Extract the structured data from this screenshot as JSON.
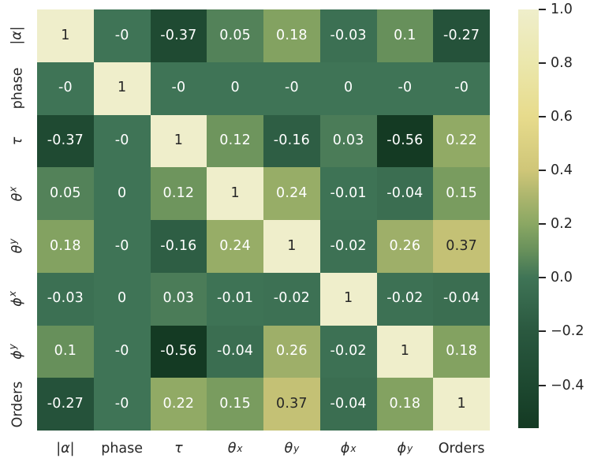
{
  "figure": {
    "background": "#ffffff",
    "text_color": "#262626",
    "annot_light_color": "#ffffff"
  },
  "chart_data": {
    "type": "heatmap",
    "title": "",
    "xlabel": "",
    "ylabel": "",
    "categories": [
      "|α|",
      "phase",
      "τ",
      "θ^x",
      "θ^y",
      "ϕ^x",
      "ϕ^y",
      "Orders"
    ],
    "label_specs": [
      "|*α*|",
      "phase",
      "*τ*",
      "*θ*^x",
      "*θ*^y",
      "*ϕ*^x",
      "*ϕ*^y",
      "Orders"
    ],
    "values": [
      [
        1,
        0,
        -0.37,
        0.05,
        0.18,
        -0.03,
        0.1,
        -0.27
      ],
      [
        0,
        1,
        0,
        0,
        0,
        0,
        0,
        0
      ],
      [
        -0.37,
        0,
        1,
        0.12,
        -0.16,
        0.03,
        -0.56,
        0.22
      ],
      [
        0.05,
        0,
        0.12,
        1,
        0.24,
        -0.01,
        -0.04,
        0.15
      ],
      [
        0.18,
        0,
        -0.16,
        0.24,
        1,
        -0.02,
        0.26,
        0.37
      ],
      [
        -0.03,
        0,
        0.03,
        -0.01,
        -0.02,
        1,
        -0.02,
        -0.04
      ],
      [
        0.1,
        0,
        -0.56,
        -0.04,
        0.26,
        -0.02,
        1,
        0.18
      ],
      [
        -0.27,
        0,
        0.22,
        0.15,
        0.37,
        -0.04,
        0.18,
        1
      ]
    ],
    "annotations": [
      [
        "1",
        "-0",
        "-0.37",
        "0.05",
        "0.18",
        "-0.03",
        "0.1",
        "-0.27"
      ],
      [
        "-0",
        "1",
        "-0",
        "0",
        "-0",
        "0",
        "-0",
        "-0"
      ],
      [
        "-0.37",
        "-0",
        "1",
        "0.12",
        "-0.16",
        "0.03",
        "-0.56",
        "0.22"
      ],
      [
        "0.05",
        "0",
        "0.12",
        "1",
        "0.24",
        "-0.01",
        "-0.04",
        "0.15"
      ],
      [
        "0.18",
        "-0",
        "-0.16",
        "0.24",
        "1",
        "-0.02",
        "0.26",
        "0.37"
      ],
      [
        "-0.03",
        "0",
        "0.03",
        "-0.01",
        "-0.02",
        "1",
        "-0.02",
        "-0.04"
      ],
      [
        "0.1",
        "-0",
        "-0.56",
        "-0.04",
        "0.26",
        "-0.02",
        "1",
        "0.18"
      ],
      [
        "-0.27",
        "-0",
        "0.22",
        "0.15",
        "0.37",
        "-0.04",
        "0.18",
        "1"
      ]
    ],
    "vmin": -0.56,
    "vmax": 1.0,
    "colormap_stops": [
      {
        "v": -0.56,
        "c": "#143a23"
      },
      {
        "v": -0.4,
        "c": "#1d4830"
      },
      {
        "v": -0.2,
        "c": "#2a583f"
      },
      {
        "v": 0.0,
        "c": "#3f7456"
      },
      {
        "v": 0.1,
        "c": "#67905b"
      },
      {
        "v": 0.2,
        "c": "#8aa763"
      },
      {
        "v": 0.3,
        "c": "#abb56d"
      },
      {
        "v": 0.4,
        "c": "#cfc678"
      },
      {
        "v": 0.6,
        "c": "#e7db8c"
      },
      {
        "v": 0.8,
        "c": "#ebe7ac"
      },
      {
        "v": 1.0,
        "c": "#efeecb"
      }
    ],
    "colorbar_ticks": [
      {
        "v": 1.0,
        "label": "1.0"
      },
      {
        "v": 0.8,
        "label": "0.8"
      },
      {
        "v": 0.6,
        "label": "0.6"
      },
      {
        "v": 0.4,
        "label": "0.4"
      },
      {
        "v": 0.2,
        "label": "0.2"
      },
      {
        "v": 0.0,
        "label": "0.0"
      },
      {
        "v": -0.2,
        "label": "−0.2"
      },
      {
        "v": -0.4,
        "label": "−0.4"
      }
    ],
    "legend_position": "right-colorbar",
    "grid": false
  }
}
